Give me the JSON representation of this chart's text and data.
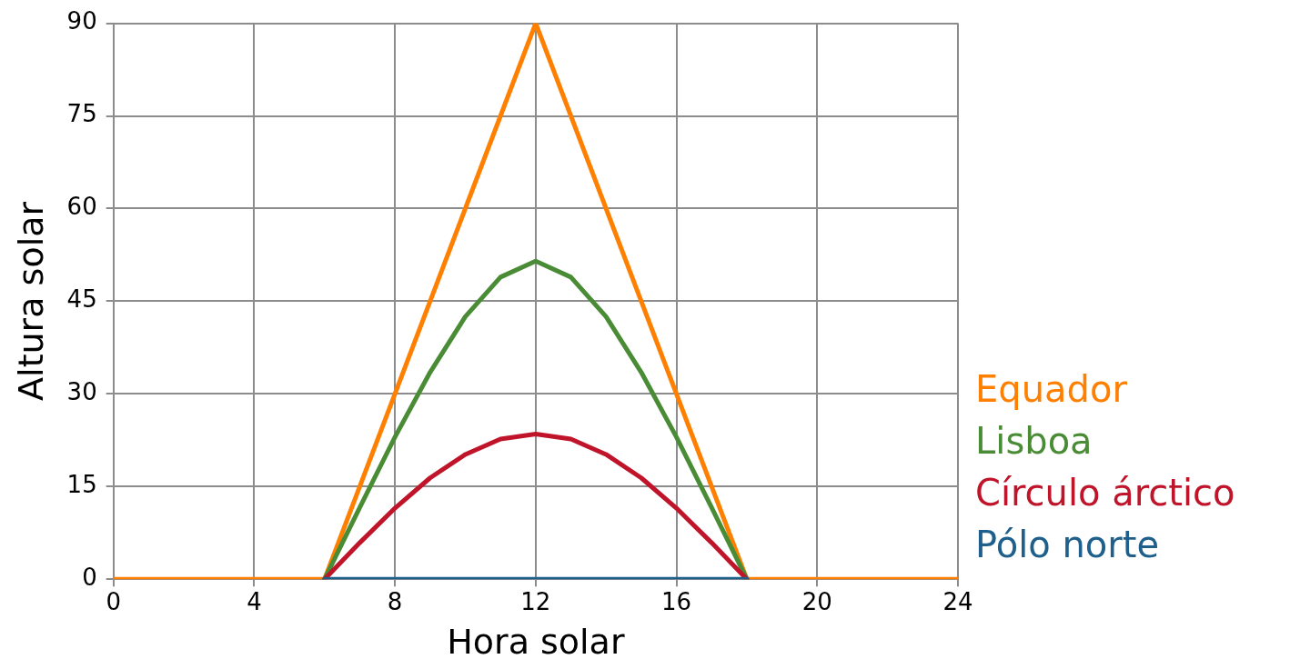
{
  "chart_data": {
    "type": "line",
    "xlabel": "Hora solar",
    "ylabel": "Altura solar",
    "xlim": [
      0,
      24
    ],
    "xticks": [
      0,
      4,
      8,
      12,
      16,
      20,
      24
    ],
    "ylim": [
      0,
      90
    ],
    "yticks": [
      0,
      15,
      30,
      45,
      60,
      75,
      90
    ],
    "grid": true,
    "legend": "right",
    "marker": "none",
    "series": [
      {
        "name": "Equador",
        "color": "#ff8000",
        "x": [
          0,
          6,
          12,
          18,
          24
        ],
        "values": [
          0,
          0,
          90,
          0,
          0
        ]
      },
      {
        "name": "Lisboa",
        "color": "#4a8c35",
        "x": [
          6,
          7,
          8,
          9,
          10,
          11,
          12,
          13,
          14,
          15,
          16,
          17,
          18
        ],
        "values": [
          0,
          11.6,
          23,
          33.5,
          42.5,
          48.9,
          51.5,
          48.9,
          42.5,
          33.5,
          23,
          11.6,
          0
        ]
      },
      {
        "name": "Círculo árctico",
        "color": "#c0142a",
        "x": [
          6,
          7,
          8,
          9,
          10,
          11,
          12,
          13,
          14,
          15,
          16,
          17,
          18
        ],
        "values": [
          0,
          5.9,
          11.5,
          16.4,
          20.2,
          22.7,
          23.5,
          22.7,
          20.2,
          16.4,
          11.5,
          5.9,
          0
        ]
      },
      {
        "name": "Pólo norte",
        "color": "#1f5f8b",
        "x": [
          6,
          18
        ],
        "values": [
          0,
          0
        ]
      }
    ]
  }
}
